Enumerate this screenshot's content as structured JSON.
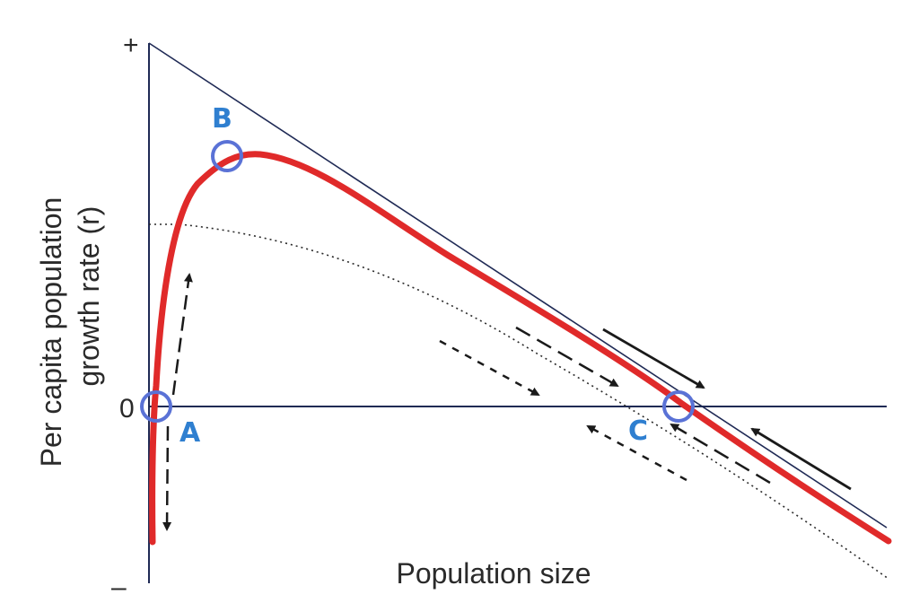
{
  "axes": {
    "y_label_line1": "Per capita population",
    "y_label_line2": "growth rate (r)",
    "x_label": "Population size",
    "y_tick_top": "+",
    "y_tick_zero": "0",
    "y_tick_bottom": "–"
  },
  "points": {
    "a": "A",
    "b": "B",
    "c": "C"
  },
  "colors": {
    "axis": "#1f2a55",
    "curve": "#e02a2a",
    "marker": "#5a72d6",
    "label": "#2f7fd0",
    "arrow": "#1a1a1a"
  }
}
